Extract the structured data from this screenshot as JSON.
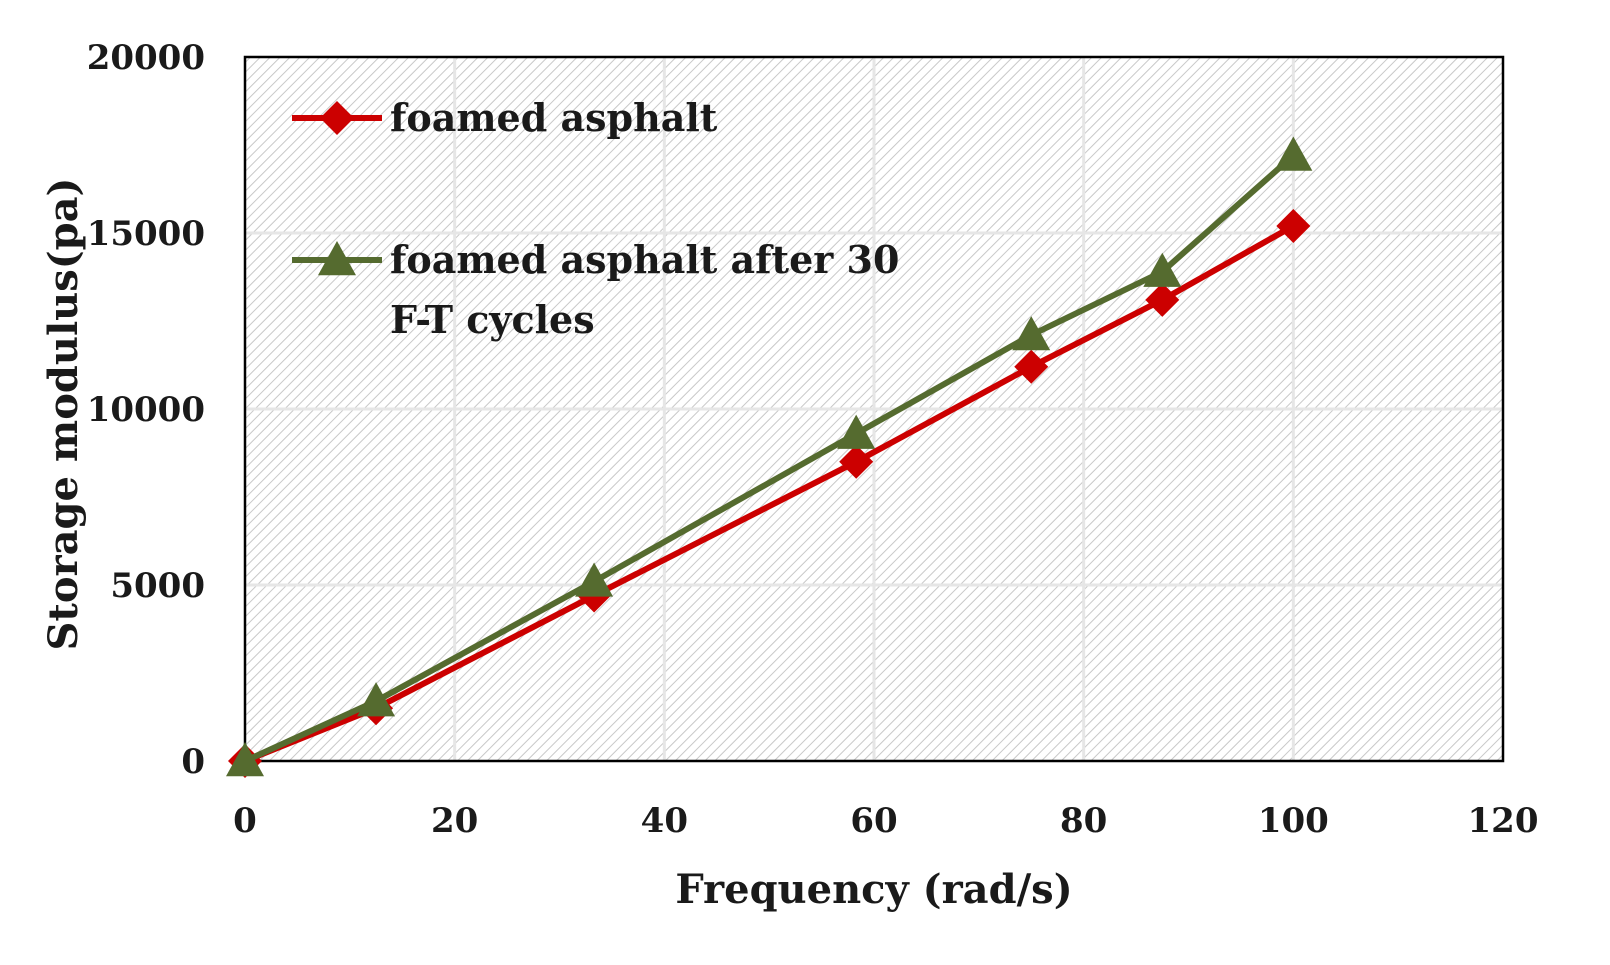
{
  "chart_data": {
    "type": "line",
    "title": "",
    "xlabel": "Frequency (rad/s)",
    "ylabel": "Storage modulus(pa)",
    "xlim": [
      0,
      120
    ],
    "ylim": [
      0,
      20000
    ],
    "xticks": [
      0,
      20,
      40,
      60,
      80,
      100,
      120
    ],
    "yticks": [
      0,
      5000,
      10000,
      15000,
      20000
    ],
    "x_tick_labels": [
      "0",
      "20",
      "40",
      "60",
      "80",
      "100",
      "120"
    ],
    "y_tick_labels": [
      "0",
      "5000",
      "10000",
      "15000",
      "20000"
    ],
    "grid": true,
    "legend_position": "top-left",
    "series": [
      {
        "name": "foamed asphalt",
        "legend_lines": [
          "foamed asphalt"
        ],
        "color": "#cc0000",
        "marker": "diamond",
        "x": [
          0,
          12.5,
          33.3,
          58.3,
          75,
          87.5,
          100
        ],
        "y": [
          0,
          1500,
          4700,
          8500,
          11200,
          13100,
          15200
        ]
      },
      {
        "name": "foamed asphalt after 30 F-T cycles",
        "legend_lines": [
          "foamed asphalt after 30",
          "F-T cycles"
        ],
        "color": "#556b2f",
        "marker": "triangle",
        "x": [
          0,
          12.5,
          33.3,
          58.3,
          75,
          87.5,
          100
        ],
        "y": [
          0,
          1700,
          5100,
          9300,
          12100,
          13900,
          17200
        ]
      }
    ]
  }
}
